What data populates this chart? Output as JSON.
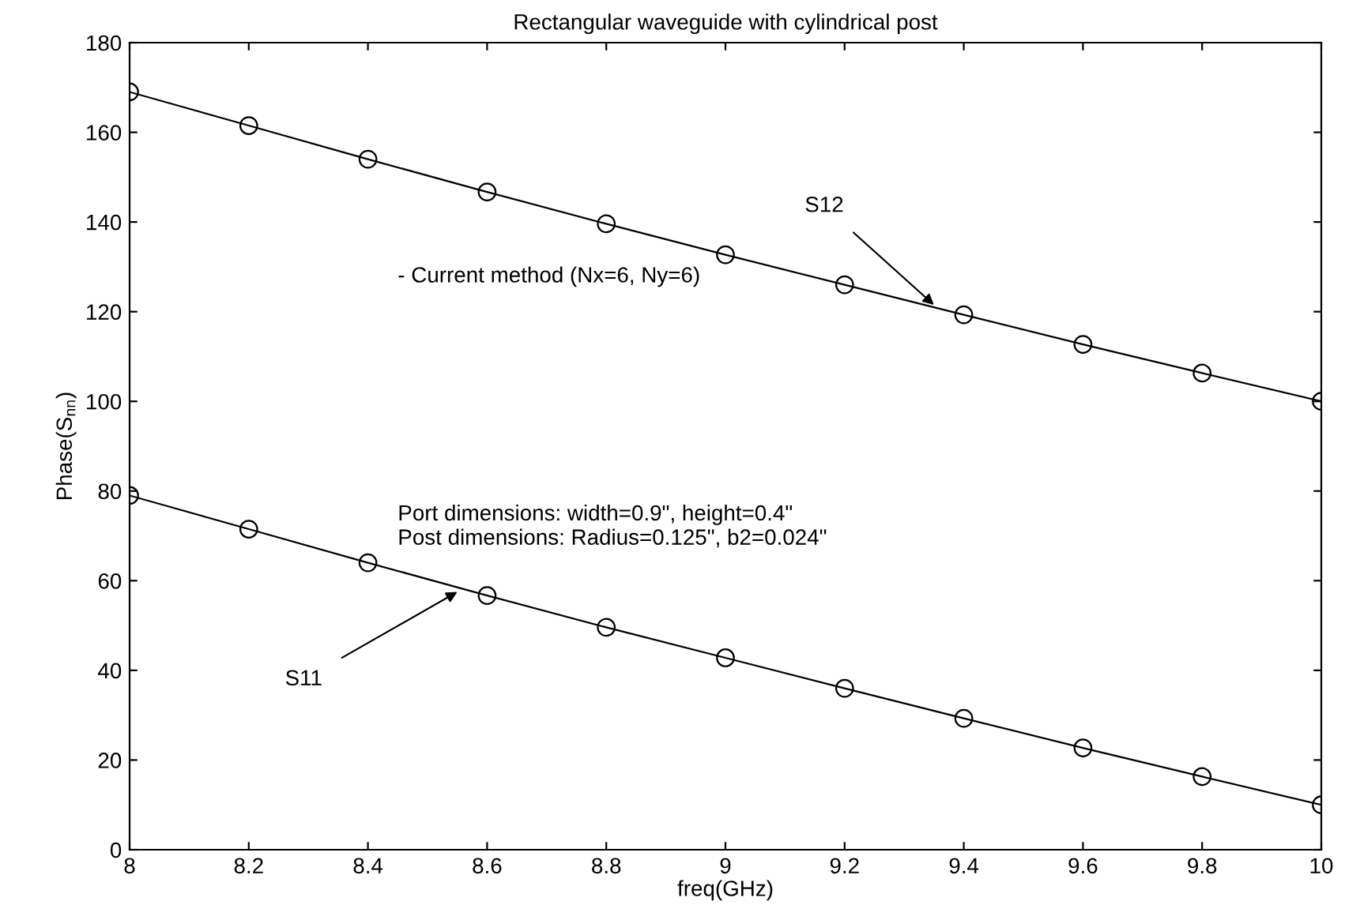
{
  "chart_data": {
    "type": "line",
    "title": "Rectangular waveguide with cylindrical post",
    "xlabel": "freq(GHz)",
    "ylabel": "Phase(S$_{nn}$)",
    "x": [
      8,
      8.2,
      8.4,
      8.6,
      8.8,
      9,
      9.2,
      9.4,
      9.6,
      9.8,
      10
    ],
    "series": [
      {
        "color": "#000000",
        "marker": "none",
        "values": [
          169,
          161.5,
          154,
          146.7,
          139.6,
          132.7,
          126,
          119.3,
          112.7,
          106.3,
          100
        ]
      },
      {
        "type": "scatter",
        "color": "#000000",
        "marker": "circle",
        "values": [
          169,
          161.5,
          154,
          146.7,
          139.6,
          132.7,
          126,
          119.3,
          112.7,
          106.3,
          100
        ]
      },
      {
        "color": "#000000",
        "marker": "none",
        "values": [
          79,
          71.5,
          64,
          56.7,
          49.6,
          42.8,
          36,
          29.3,
          22.7,
          16.3,
          10
        ]
      },
      {
        "type": "scatter",
        "color": "#000000",
        "marker": "circle",
        "values": [
          79,
          71.5,
          64,
          56.7,
          49.6,
          42.8,
          36,
          29.3,
          22.7,
          16.3,
          10
        ]
      }
    ],
    "annotations": [
      {
        "text": "S12",
        "x": 9.35,
        "y": 121.5
      },
      {
        "text": "S11",
        "x": 8.55,
        "y": 57.5
      },
      "- Current method (Nx=6, Ny=6)",
      "Port dimensions: width=0.9\", height=0.4\"",
      "Post dimensions: Radius=0.125\", b2=0.024\""
    ],
    "xlim": [
      8,
      10
    ],
    "ylim": [
      0,
      180
    ],
    "xticks": [
      8,
      8.2,
      8.4,
      8.6,
      8.8,
      9,
      9.2,
      9.4,
      9.6,
      9.8,
      10
    ],
    "yticks": [
      0,
      20,
      40,
      60,
      80,
      100,
      120,
      140,
      160,
      180
    ],
    "grid": false,
    "legend": false
  }
}
